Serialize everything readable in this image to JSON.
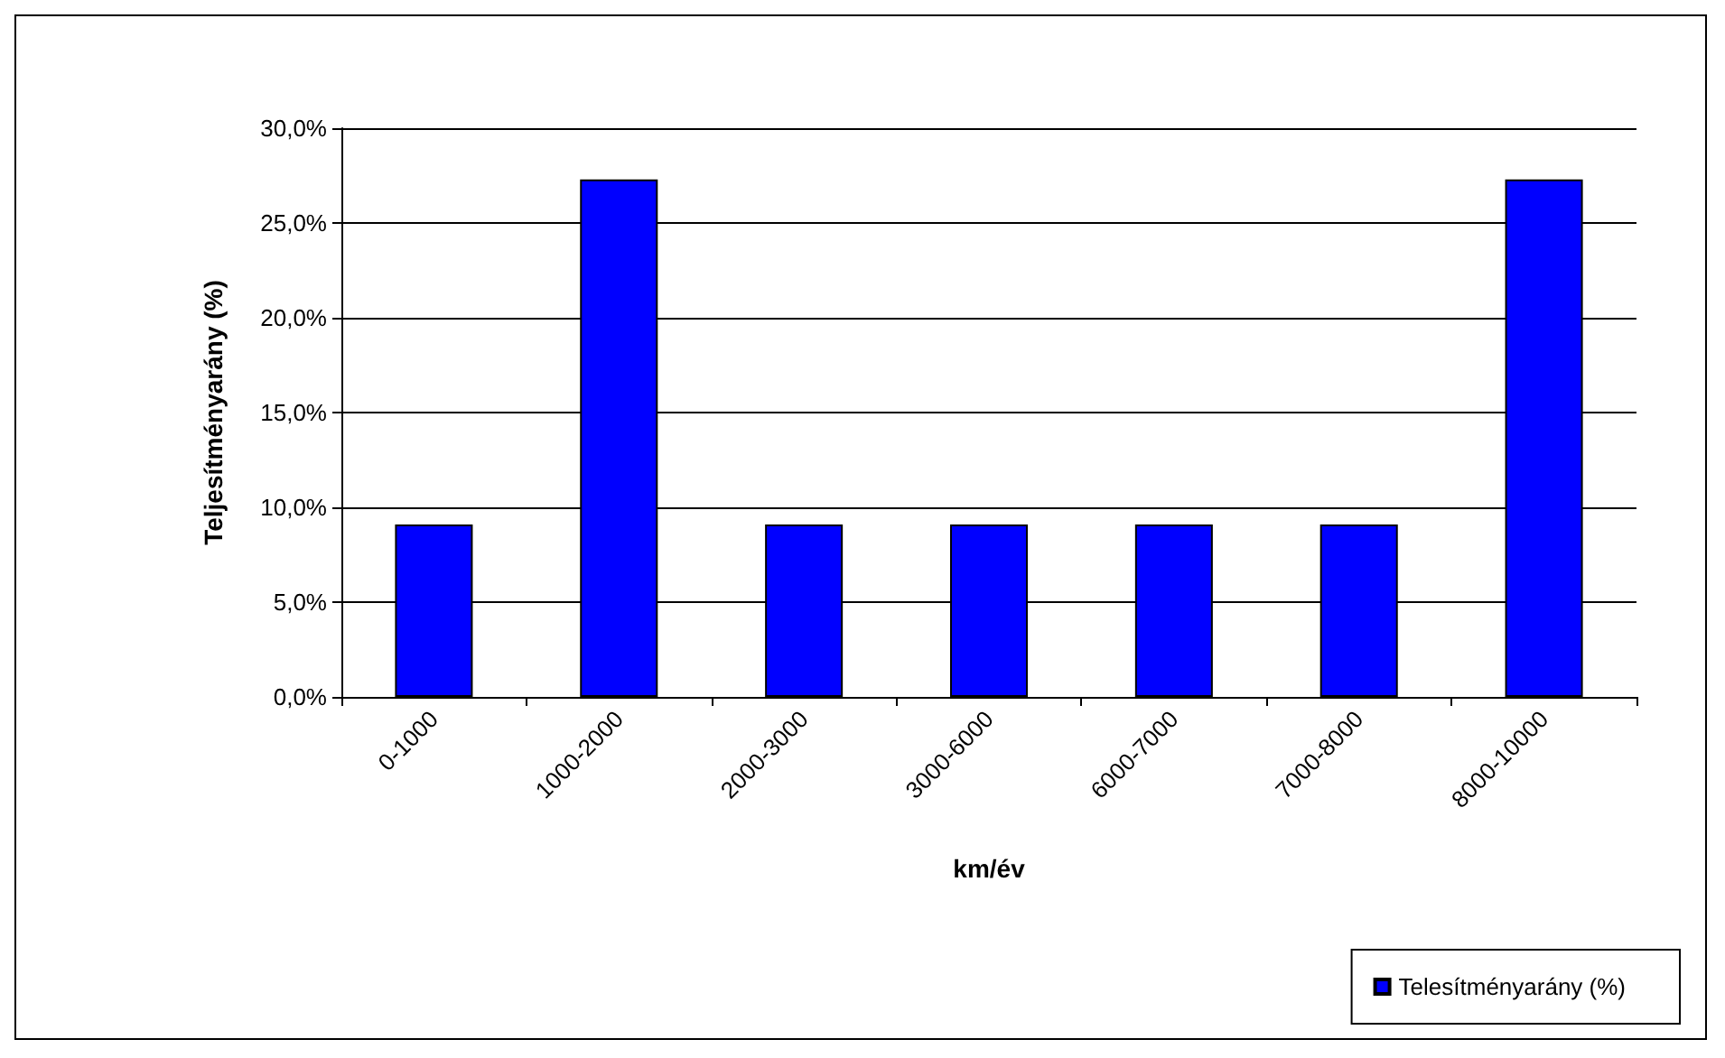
{
  "chart_data": {
    "type": "bar",
    "xlabel": "km/év",
    "ylabel": "Teljesítményarány (%)",
    "categories": [
      "0-1000",
      "1000-2000",
      "2000-3000",
      "3000-6000",
      "6000-7000",
      "7000-8000",
      "8000-10000"
    ],
    "series": [
      {
        "name": "Telesítményarány (%)",
        "color": "#0000ff",
        "values": [
          9.1,
          27.3,
          9.1,
          9.1,
          9.1,
          9.1,
          27.3
        ]
      }
    ],
    "ylim": [
      0,
      30
    ],
    "yticks": [
      {
        "value": 0,
        "label": "0,0%"
      },
      {
        "value": 5,
        "label": "5,0%"
      },
      {
        "value": 10,
        "label": "10,0%"
      },
      {
        "value": 15,
        "label": "15,0%"
      },
      {
        "value": 20,
        "label": "20,0%"
      },
      {
        "value": 25,
        "label": "25,0%"
      },
      {
        "value": 30,
        "label": "30,0%"
      }
    ],
    "grid": "y",
    "legend": "bottom right"
  }
}
